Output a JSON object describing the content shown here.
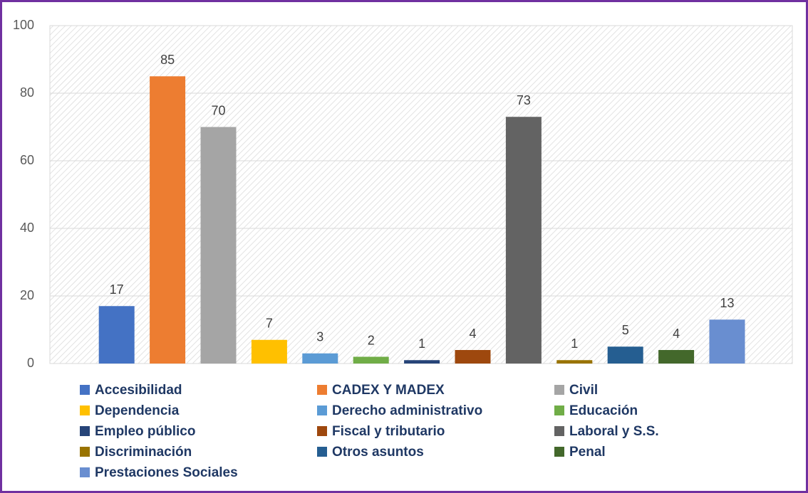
{
  "chart_data": {
    "type": "bar",
    "series": [
      {
        "name": "Accesibilidad",
        "color": "#4472c4",
        "values": [
          17
        ]
      },
      {
        "name": "CADEX Y MADEX",
        "color": "#ed7d31",
        "values": [
          85
        ]
      },
      {
        "name": "Civil",
        "color": "#a5a5a5",
        "values": [
          70
        ]
      },
      {
        "name": "Dependencia",
        "color": "#ffc000",
        "values": [
          7
        ]
      },
      {
        "name": "Derecho administrativo",
        "color": "#5b9bd5",
        "values": [
          3
        ]
      },
      {
        "name": "Educación",
        "color": "#70ad47",
        "values": [
          2
        ]
      },
      {
        "name": "Empleo público",
        "color": "#264478",
        "values": [
          1
        ]
      },
      {
        "name": "Fiscal y tributario",
        "color": "#9e480e",
        "values": [
          4
        ]
      },
      {
        "name": "Laboral y S.S.",
        "color": "#636363",
        "values": [
          73
        ]
      },
      {
        "name": "Discriminación",
        "color": "#997300",
        "values": [
          1
        ]
      },
      {
        "name": "Otros asuntos",
        "color": "#255e91",
        "values": [
          5
        ]
      },
      {
        "name": "Penal",
        "color": "#43682b",
        "values": [
          4
        ]
      },
      {
        "name": "Prestaciones Sociales",
        "color": "#698ed0",
        "values": [
          13
        ]
      }
    ],
    "ylim": [
      0,
      100
    ],
    "yticks": [
      0,
      20,
      40,
      60,
      80,
      100
    ],
    "grid": true,
    "legend": "bottom"
  }
}
